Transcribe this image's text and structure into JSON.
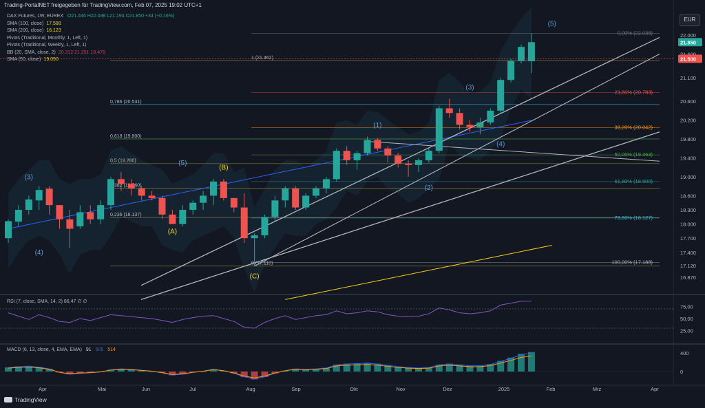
{
  "header": {
    "title": "Trading-PortalNET freigegeben für TradingView.com, Feb 07, 2025 19:02 UTC+1"
  },
  "legend": {
    "instrument": "DAX Futures, 1W, EUREX",
    "ohlc": "O21.446 H22.038 L21.194 C21.850 +34 (+0,16%)",
    "rows": [
      {
        "label": "SMA (100, close)",
        "value": "17.588",
        "color": "#f5d20f"
      },
      {
        "label": "SMA (200, close)",
        "value": "16.123",
        "color": "#f5d20f"
      },
      {
        "label": "Pivots (Traditional, Monthly, 1, Left, 1)",
        "value": "",
        "color": "#b2b5be"
      },
      {
        "label": "Pivots (Traditional, Weekly, 1, Left, 1)",
        "value": "",
        "color": "#b2b5be"
      },
      {
        "label": "BB (20, SMA, close, 2)",
        "value": "20.312 21.251 18.476",
        "color": "#c2405a"
      },
      {
        "label": "SMA (50, close)",
        "value": "19.090",
        "color": "#f5d20f"
      }
    ]
  },
  "currency": "EUR",
  "rsi_legend": "RSI (7, close, SMA, 14, 2)  86,47  ∅  ∅",
  "macd_legend": {
    "label": "MACD (6, 13, close, 4, EMA, EMA)",
    "v1": "91",
    "v2": "605",
    "v3": "514"
  },
  "footer": "TradingView",
  "colors": {
    "up": "#26a69a",
    "down": "#ef5350",
    "bg": "#131722",
    "fib": "#b8923a",
    "trend": "#b2b5be",
    "wave": "#5b9bd5",
    "wave_corr": "#f5d20f"
  },
  "chart_data": {
    "type": "candlestick",
    "title": "DAX Futures, 1W, EUREX",
    "x_labels": [
      "Apr",
      "Mai",
      "Jun",
      "Jul",
      "Aug",
      "Sep",
      "Okt",
      "Nov",
      "Dez",
      "2025",
      "Feb",
      "Mrz",
      "Apr"
    ],
    "y_ticks": [
      "22.000",
      "21.600",
      "21.100",
      "20.600",
      "20.200",
      "19.800",
      "19.400",
      "19.000",
      "18.600",
      "18.300",
      "18.000",
      "17.700",
      "17.400",
      "17.120",
      "16.870"
    ],
    "ohlc": [
      {
        "o": 17.7,
        "h": 18.1,
        "l": 17.6,
        "c": 18.06
      },
      {
        "o": 18.05,
        "h": 18.4,
        "l": 17.95,
        "c": 18.3
      },
      {
        "o": 18.3,
        "h": 18.6,
        "l": 18.2,
        "c": 18.52
      },
      {
        "o": 18.5,
        "h": 18.8,
        "l": 18.3,
        "c": 18.72
      },
      {
        "o": 18.75,
        "h": 18.8,
        "l": 18.2,
        "c": 18.4
      },
      {
        "o": 18.4,
        "h": 18.4,
        "l": 17.9,
        "c": 18.1
      },
      {
        "o": 18.1,
        "h": 18.3,
        "l": 17.5,
        "c": 17.9
      },
      {
        "o": 17.95,
        "h": 18.4,
        "l": 17.9,
        "c": 18.25
      },
      {
        "o": 18.25,
        "h": 18.4,
        "l": 18.0,
        "c": 18.1
      },
      {
        "o": 18.1,
        "h": 18.5,
        "l": 18.0,
        "c": 18.4
      },
      {
        "o": 18.4,
        "h": 19.0,
        "l": 18.3,
        "c": 18.95
      },
      {
        "o": 18.95,
        "h": 19.1,
        "l": 18.7,
        "c": 18.85
      },
      {
        "o": 18.85,
        "h": 18.95,
        "l": 18.6,
        "c": 18.75
      },
      {
        "o": 18.75,
        "h": 18.8,
        "l": 18.5,
        "c": 18.6
      },
      {
        "o": 18.6,
        "h": 18.7,
        "l": 18.5,
        "c": 18.55
      },
      {
        "o": 18.55,
        "h": 18.6,
        "l": 18.1,
        "c": 18.2
      },
      {
        "o": 18.2,
        "h": 18.3,
        "l": 18.0,
        "c": 18.0
      },
      {
        "o": 18.0,
        "h": 18.4,
        "l": 17.95,
        "c": 18.3
      },
      {
        "o": 18.3,
        "h": 18.5,
        "l": 18.2,
        "c": 18.45
      },
      {
        "o": 18.45,
        "h": 18.7,
        "l": 18.3,
        "c": 18.6
      },
      {
        "o": 18.6,
        "h": 18.95,
        "l": 18.4,
        "c": 18.9
      },
      {
        "o": 18.9,
        "h": 18.95,
        "l": 18.5,
        "c": 18.55
      },
      {
        "o": 18.55,
        "h": 18.55,
        "l": 18.25,
        "c": 18.35
      },
      {
        "o": 18.35,
        "h": 18.65,
        "l": 17.6,
        "c": 17.7
      },
      {
        "o": 17.7,
        "h": 17.8,
        "l": 17.11,
        "c": 17.76
      },
      {
        "o": 17.76,
        "h": 18.2,
        "l": 17.7,
        "c": 18.15
      },
      {
        "o": 18.15,
        "h": 18.6,
        "l": 18.05,
        "c": 18.5
      },
      {
        "o": 18.5,
        "h": 18.8,
        "l": 18.35,
        "c": 18.75
      },
      {
        "o": 18.75,
        "h": 18.8,
        "l": 18.3,
        "c": 18.35
      },
      {
        "o": 18.35,
        "h": 18.65,
        "l": 18.3,
        "c": 18.6
      },
      {
        "o": 18.6,
        "h": 18.8,
        "l": 18.55,
        "c": 18.75
      },
      {
        "o": 18.75,
        "h": 19.0,
        "l": 18.65,
        "c": 18.95
      },
      {
        "o": 18.95,
        "h": 19.6,
        "l": 18.9,
        "c": 19.55
      },
      {
        "o": 19.55,
        "h": 19.65,
        "l": 19.25,
        "c": 19.35
      },
      {
        "o": 19.35,
        "h": 19.55,
        "l": 19.15,
        "c": 19.5
      },
      {
        "o": 19.5,
        "h": 19.85,
        "l": 19.45,
        "c": 19.78
      },
      {
        "o": 19.78,
        "h": 19.82,
        "l": 19.55,
        "c": 19.6
      },
      {
        "o": 19.6,
        "h": 19.65,
        "l": 19.3,
        "c": 19.45
      },
      {
        "o": 19.45,
        "h": 19.5,
        "l": 19.2,
        "c": 19.28
      },
      {
        "o": 19.28,
        "h": 19.35,
        "l": 19.0,
        "c": 19.25
      },
      {
        "o": 19.25,
        "h": 19.4,
        "l": 19.1,
        "c": 19.35
      },
      {
        "o": 19.35,
        "h": 19.6,
        "l": 19.3,
        "c": 19.55
      },
      {
        "o": 19.55,
        "h": 20.5,
        "l": 19.5,
        "c": 20.45
      },
      {
        "o": 20.45,
        "h": 20.65,
        "l": 20.25,
        "c": 20.35
      },
      {
        "o": 20.35,
        "h": 20.45,
        "l": 20.0,
        "c": 20.1
      },
      {
        "o": 20.1,
        "h": 20.2,
        "l": 19.95,
        "c": 20.05
      },
      {
        "o": 20.05,
        "h": 20.25,
        "l": 19.9,
        "c": 20.15
      },
      {
        "o": 20.15,
        "h": 20.45,
        "l": 20.1,
        "c": 20.4
      },
      {
        "o": 20.4,
        "h": 21.1,
        "l": 20.35,
        "c": 21.05
      },
      {
        "o": 21.05,
        "h": 21.5,
        "l": 21.0,
        "c": 21.45
      },
      {
        "o": 21.45,
        "h": 21.8,
        "l": 21.4,
        "c": 21.75
      },
      {
        "o": 21.446,
        "h": 22.038,
        "l": 21.194,
        "c": 21.85
      }
    ],
    "fib_left": [
      {
        "label": "0,786 (20.531)",
        "v": 20.531
      },
      {
        "label": "0,618 (19.800)",
        "v": 19.8
      },
      {
        "label": "0,5 (19.280)",
        "v": 19.28
      },
      {
        "label": "0,382 (18.760)",
        "v": 18.76
      },
      {
        "label": "0,236 (18.137)",
        "v": 18.137
      },
      {
        "label": "1 (21.462)",
        "v": 21.462
      },
      {
        "label": "0 (17.110)",
        "v": 17.11
      }
    ],
    "fib_right": [
      {
        "label": "0,00% (22.038)",
        "v": 22.038
      },
      {
        "label": "23,60% (20.783)",
        "v": 20.783
      },
      {
        "label": "38,20% (20.042)",
        "v": 20.042
      },
      {
        "label": "50,00% (19.463)",
        "v": 19.463
      },
      {
        "label": "61,80% (18.900)",
        "v": 18.9
      },
      {
        "label": "78,60% (18.127)",
        "v": 18.127
      },
      {
        "label": "100,00% (17.188)",
        "v": 17.188
      }
    ],
    "wave_labels": [
      {
        "text": "(3)",
        "i": 2,
        "v": 18.95
      },
      {
        "text": "(4)",
        "i": 3,
        "v": 17.35
      },
      {
        "text": "(5)",
        "i": 17,
        "v": 19.25
      },
      {
        "text": "(1)",
        "i": 36,
        "v": 20.05
      },
      {
        "text": "(2)",
        "i": 41,
        "v": 18.72
      },
      {
        "text": "(3)",
        "i": 45,
        "v": 20.85
      },
      {
        "text": "(4)",
        "i": 48,
        "v": 19.65
      },
      {
        "text": "(5)",
        "i": 53,
        "v": 22.2
      }
    ],
    "corr_labels": [
      {
        "text": "(A)",
        "i": 16,
        "v": 17.8
      },
      {
        "text": "(B)",
        "i": 21,
        "v": 19.15
      },
      {
        "text": "(C)",
        "i": 24,
        "v": 16.85
      }
    ],
    "last_price": {
      "value": "21.850",
      "color": "#26a69a"
    },
    "pivot_price": {
      "value": "21.500",
      "color": "#ef5350"
    },
    "rsi_ticks": [
      "75,00",
      "50,00",
      "25,00"
    ],
    "macd_ticks": [
      "400",
      "0"
    ],
    "rsi": [
      62,
      55,
      48,
      58,
      52,
      44,
      42,
      50,
      46,
      52,
      58,
      56,
      54,
      52,
      50,
      46,
      42,
      48,
      52,
      55,
      56,
      50,
      44,
      32,
      30,
      42,
      50,
      56,
      48,
      52,
      56,
      58,
      66,
      60,
      62,
      66,
      64,
      58,
      55,
      54,
      55,
      60,
      72,
      68,
      62,
      60,
      62,
      66,
      78,
      82,
      86,
      86
    ],
    "macd": [
      90,
      110,
      120,
      100,
      60,
      -20,
      -60,
      -40,
      -30,
      -10,
      40,
      60,
      50,
      30,
      10,
      -30,
      -80,
      -60,
      -20,
      10,
      50,
      20,
      -40,
      -120,
      -170,
      -120,
      -40,
      20,
      60,
      50,
      60,
      80,
      150,
      170,
      180,
      190,
      170,
      140,
      110,
      90,
      80,
      90,
      150,
      170,
      150,
      130,
      130,
      160,
      230,
      300,
      380,
      420
    ]
  }
}
